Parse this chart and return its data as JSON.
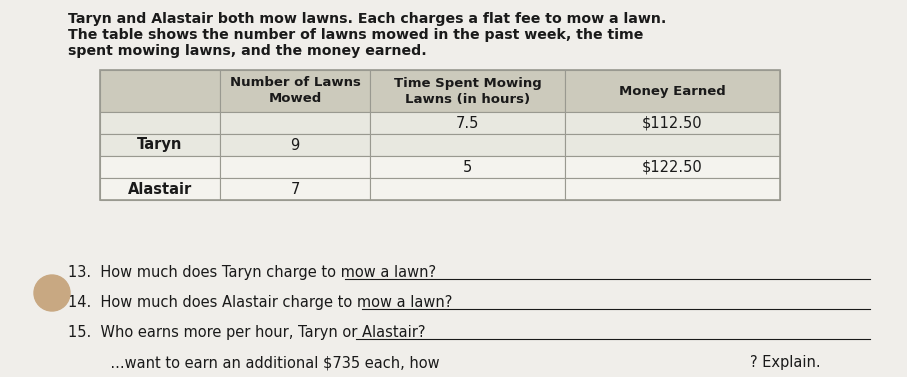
{
  "intro_text_line1": "Taryn and Alastair both mow lawns. Each charges a flat fee to mow a lawn.",
  "intro_text_line2": "The table shows the number of lawns mowed in the past week, the time",
  "intro_text_line3": "spent mowing lawns, and the money earned.",
  "col_headers": [
    "Number of Lawns\nMowed",
    "Time Spent Mowing\nLawns (in hours)",
    "Money Earned"
  ],
  "row_labels": [
    "Taryn",
    "Alastair"
  ],
  "taryn_lawns": "9",
  "taryn_time": "7.5",
  "taryn_money": "$112.50",
  "alastair_lawns": "7",
  "alastair_time": "5",
  "alastair_money": "$122.50",
  "q13": "13.  How much does Taryn charge to mow a lawn?",
  "q14": "14.  How much does Alastair charge to mow a lawn?",
  "q15": "15.  Who earns more per hour, Taryn or Alastair?",
  "q16_part": "       ...want to earn an additional $735 each, how",
  "q16_end": "? Explain.",
  "background_color": "#f0eeea",
  "header_bg": "#cccabc",
  "taryn_row_bg": "#e8e8e0",
  "alastair_row_bg": "#f4f3ee",
  "border_color": "#999990",
  "text_color": "#1a1a1a",
  "font_size_intro": 10.2,
  "font_size_header": 9.5,
  "font_size_data": 10.5,
  "font_size_rowlabel": 10.5,
  "font_size_questions": 10.5
}
